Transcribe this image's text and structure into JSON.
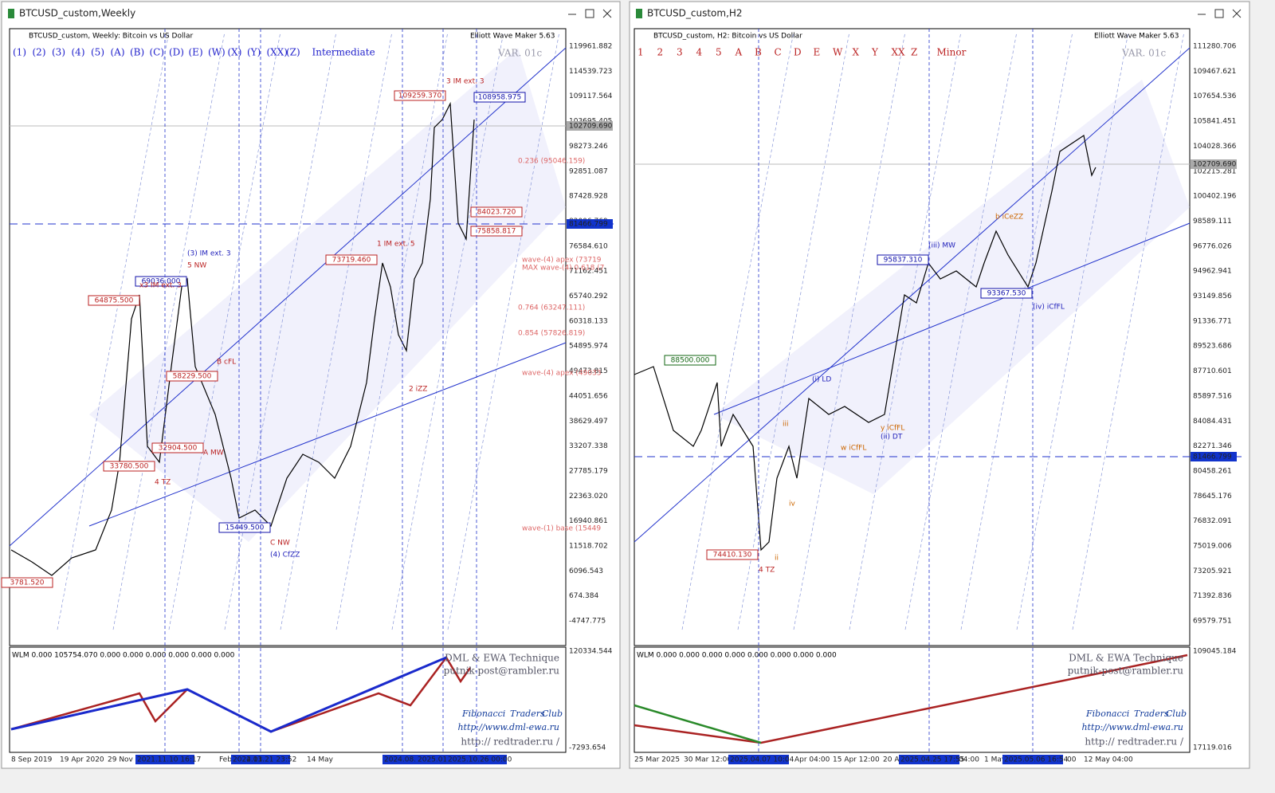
{
  "windows": [
    {
      "title": "BTCUSD_custom,Weekly",
      "chart_header": "BTCUSD_custom, Weekly:  Bitcoin vs US Dollar",
      "ea_label": "Elliott Wave Maker 5.63",
      "var_label": "VAR. 01c",
      "wave_buttons": [
        "(1)",
        "(2)",
        "(3)",
        "(4)",
        "(5)",
        "(A)",
        "(B)",
        "(C)",
        "(D)",
        "(E)",
        "(W)",
        "(X)",
        "(Y)",
        "(XX)",
        "(Z)"
      ],
      "degree": "Intermediate",
      "price_axis": [
        "119961.882",
        "114539.723",
        "109117.564",
        "103695.405",
        "98273.246",
        "92851.087",
        "87428.928",
        "82006.769",
        "76584.610",
        "71162.451",
        "65740.292",
        "60318.133",
        "54895.974",
        "49473.815",
        "44051.656",
        "38629.497",
        "33207.338",
        "27785.179",
        "22363.020",
        "16940.861",
        "11518.702",
        "6096.543",
        "674.384",
        "-4747.775"
      ],
      "price_tags": [
        "102709.690",
        "81466.799"
      ],
      "indicator_header": "WLM 0.000 105754.070 0.000 0.000 0.000 0.000 0.000 0.000",
      "indicator_axis": [
        "120334.544",
        "-7293.654"
      ],
      "time_axis": [
        "8 Sep 2019",
        "19 Apr 2020",
        "29 Nov 2020",
        "Feb 20",
        "14 May"
      ],
      "time_tags": [
        "2021.11.10 16:17",
        "2022.11.21 23:52",
        "2024.03.",
        "2024.08.05",
        "2025.01.20 08:56",
        "2025.10.26 00:00"
      ],
      "watermark": [
        "DML & EWA Technique",
        "putnik-post@rambler.ru",
        "Fibonacci",
        "Traders",
        "Club",
        "http://www.dml-ewa.ru",
        "http:// redtrader.ru /"
      ],
      "annotations": [
        "3 IM ext. 3",
        "109259.370",
        "108958.975",
        "0.236 (95046.159)",
        "84023.720",
        "75858.817",
        "wave-(4) apex (73719",
        "MAX wave-(4) 0.618 (7",
        "0.764 (63247.111)",
        "0.854 (57826.819)",
        "wave-(4) apex (49033",
        "wave-(1) base (15449",
        "1 IM ext. 5",
        "73719.460",
        "2 iZZ",
        "(3) IM ext. 3",
        "5 NW",
        "69036.000",
        "x3 IM ext. 3",
        "64875.500",
        "B cFL",
        "58229.500",
        "A MW",
        "32904.500",
        "33780.500",
        "4 TZ",
        "15449.500",
        "C NW",
        "(4) CfZZ",
        "3781.520"
      ]
    },
    {
      "title": "BTCUSD_custom,H2",
      "chart_header": "BTCUSD_custom, H2:  Bitcoin vs US Dollar",
      "ea_label": "Elliott Wave Maker 5.63",
      "var_label": "VAR. 01c",
      "wave_buttons": [
        "1",
        "2",
        "3",
        "4",
        "5",
        "A",
        "B",
        "C",
        "D",
        "E",
        "W",
        "X",
        "Y",
        "XX",
        "Z"
      ],
      "degree": "Minor",
      "price_axis": [
        "111280.706",
        "109467.621",
        "107654.536",
        "105841.451",
        "104028.366",
        "102215.281",
        "100402.196",
        "98589.111",
        "96776.026",
        "94962.941",
        "93149.856",
        "91336.771",
        "89523.686",
        "87710.601",
        "85897.516",
        "84084.431",
        "82271.346",
        "80458.261",
        "78645.176",
        "76832.091",
        "75019.006",
        "73205.921",
        "71392.836",
        "69579.751"
      ],
      "price_tags": [
        "102709.690",
        "81466.799"
      ],
      "indicator_header": "WLM 0.000 0.000 0.000 0.000 0.000 0.000 0.000 0.000",
      "indicator_axis": [
        "109045.184",
        "17119.016"
      ],
      "time_axis": [
        "25 Mar 2025",
        "30 Mar 12:00",
        "Apr 04:00",
        "15 Apr 12:00",
        "20 A",
        "04:00",
        "1 May",
        "00",
        "12 May 04:00"
      ],
      "time_tags": [
        "2025.04.07 10:04",
        "2025.04.25 17:55",
        "2025.05.06 16:54"
      ],
      "watermark": [
        "DML & EWA Technique",
        "putnik-post@rambler.ru",
        "Fibonacci",
        "Traders",
        "Club",
        "http://www.dml-ewa.ru",
        "http:// redtrader.ru /"
      ],
      "annotations": [
        "b iCeZZ",
        "95837.310",
        "(iii) MW",
        "93367.530",
        "(iv) iCfFL",
        "88500.000",
        "(i) LD",
        "y iCfFL",
        "(ii) DT",
        "w iCfFL",
        "74410.130",
        "4 TZ",
        "iii",
        "iv",
        "ii"
      ]
    }
  ]
}
